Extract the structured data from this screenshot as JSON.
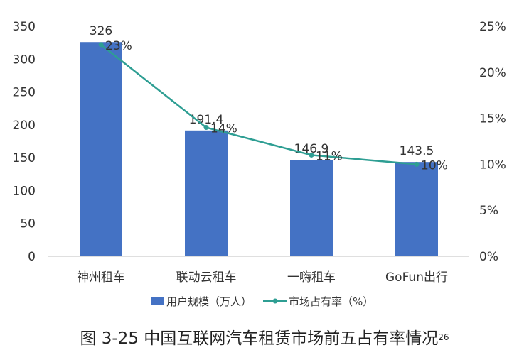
{
  "chart_data": {
    "type": "bar",
    "categories": [
      "神州租车",
      "联动云租车",
      "一嗨租车",
      "GoFun出行"
    ],
    "series": [
      {
        "name": "用户规模（万人）",
        "kind": "bar",
        "axis": "left",
        "color": "#4472C4",
        "values": [
          326,
          191.4,
          146.9,
          143.5
        ],
        "labels": [
          "326",
          "191.4",
          "146.9",
          "143.5"
        ]
      },
      {
        "name": "市场占有率（%）",
        "kind": "line",
        "axis": "right",
        "color": "#2E9E93",
        "values": [
          23,
          14,
          11,
          10
        ],
        "labels": [
          "23%",
          "14%",
          "11%",
          "10%"
        ]
      }
    ],
    "y_left": {
      "min": 0,
      "max": 350,
      "ticks": [
        "0",
        "50",
        "100",
        "150",
        "200",
        "250",
        "300",
        "350"
      ]
    },
    "y_right": {
      "min": 0,
      "max": 25,
      "ticks": [
        "0%",
        "5%",
        "10%",
        "15%",
        "20%",
        "25%"
      ]
    },
    "grid": false,
    "legend_position": "bottom"
  },
  "caption": {
    "text": "图 3-25  中国互联网汽车租赁市场前五占有率情况",
    "footnote": "26"
  }
}
